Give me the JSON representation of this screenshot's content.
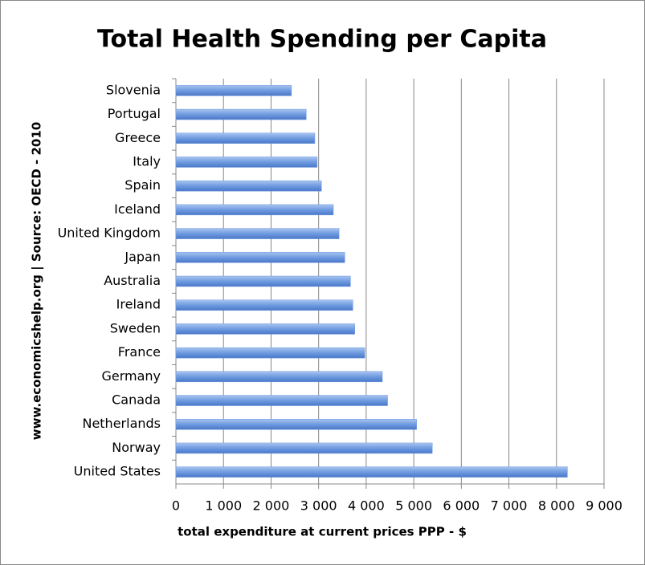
{
  "chart_data": {
    "type": "hbar",
    "title": "Total Health Spending per Capita",
    "x_label": "total expenditure at current prices PPP - $",
    "y_label": "www.economicshelp.org | Source: OECD - 2010",
    "categories": [
      "Slovenia",
      "Portugal",
      "Greece",
      "Italy",
      "Spain",
      "Iceland",
      "United Kingdom",
      "Japan",
      "Australia",
      "Ireland",
      "Sweden",
      "France",
      "Germany",
      "Canada",
      "Netherlands",
      "Norway",
      "United States"
    ],
    "values": [
      2430,
      2740,
      2920,
      2970,
      3060,
      3310,
      3430,
      3550,
      3670,
      3720,
      3760,
      3970,
      4340,
      4450,
      5060,
      5390,
      8230
    ],
    "color": "#6f9be0",
    "xlim": [
      0,
      9000
    ],
    "xticks": [
      0,
      {
        "value": 1000,
        "label": "1 000"
      },
      {
        "value": 2000,
        "label": "2 000"
      },
      {
        "value": 3000,
        "label": "3 000"
      },
      {
        "value": 4000,
        "label": "4 000"
      },
      {
        "value": 5000,
        "label": "5 000"
      },
      {
        "value": 6000,
        "label": "6 000"
      },
      {
        "value": 7000,
        "label": "7 000"
      },
      {
        "value": 8000,
        "label": "8 000"
      },
      {
        "value": 9000,
        "label": "9 000"
      }
    ],
    "grid": true
  }
}
